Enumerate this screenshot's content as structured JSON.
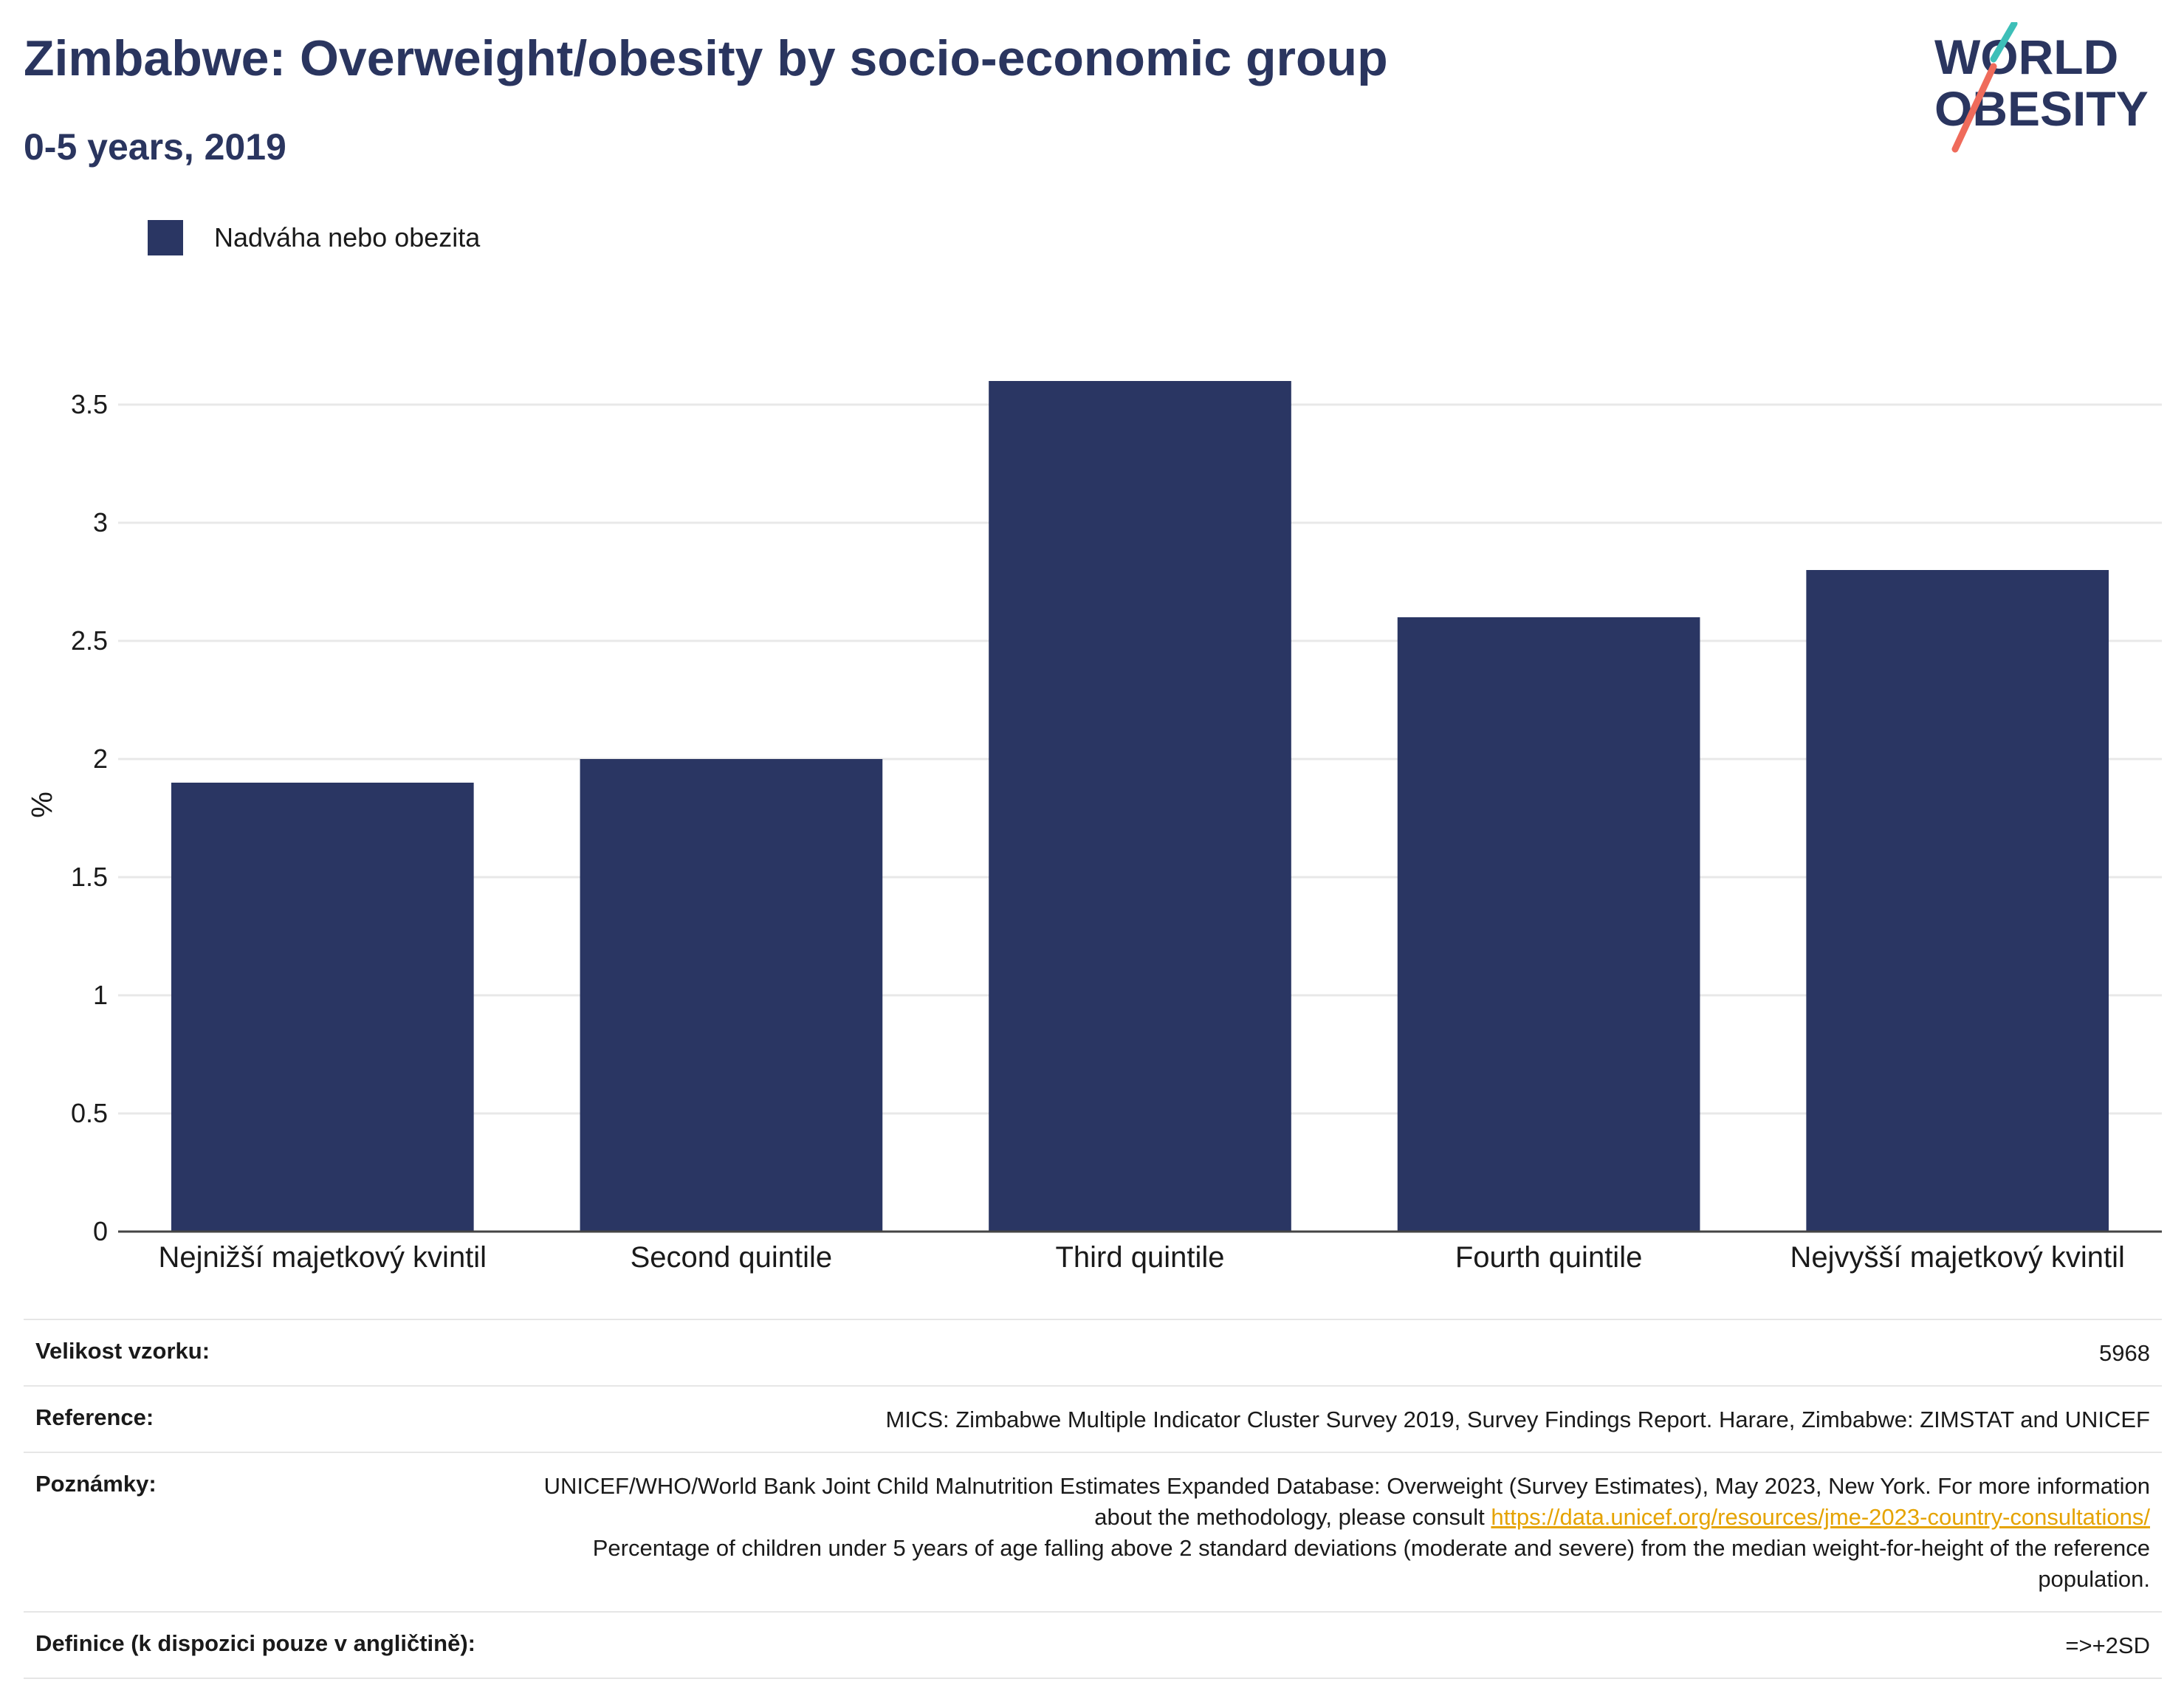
{
  "header": {
    "title": "Zimbabwe: Overweight/obesity by socio-economic group",
    "subtitle": "0-5 years, 2019"
  },
  "logo": {
    "line1": "WORLD",
    "line2": "OBESITY",
    "text_color": "#2a355f",
    "slash_colors": [
      "#3dbfb8",
      "#ef6b5b"
    ]
  },
  "colors": {
    "bar": "#2a3663",
    "title": "#2a355f",
    "link": "#e5a300"
  },
  "chart_data": {
    "type": "bar",
    "ylabel": "%",
    "xlabel": "",
    "ylim": [
      0,
      3.65
    ],
    "yticks": [
      "0",
      "0.5",
      "1",
      "1.5",
      "2",
      "2.5",
      "3",
      "3.5"
    ],
    "grid": true,
    "legend_position": "top-left",
    "categories": [
      "Nejnižší majetkový kvintil",
      "Second quintile",
      "Third quintile",
      "Fourth quintile",
      "Nejvyšší majetkový kvintil"
    ],
    "series": [
      {
        "name": "Nadváha nebo obezita",
        "values": [
          1.9,
          2.0,
          3.6,
          2.6,
          2.8
        ]
      }
    ]
  },
  "table": {
    "sample_size_label": "Velikost vzorku:",
    "sample_size_value": "5968",
    "reference_label": "Reference:",
    "reference_value": "MICS: Zimbabwe Multiple Indicator Cluster Survey 2019, Survey Findings Report. Harare, Zimbabwe: ZIMSTAT and UNICEF",
    "notes_label": "Poznámky:",
    "notes_text1": "UNICEF/WHO/World Bank Joint Child Malnutrition Estimates Expanded Database: Overweight (Survey Estimates), May 2023, New York. For more information about the methodology, please consult ",
    "notes_link": "https://data.unicef.org/resources/jme-2023-country-consultations/",
    "notes_text2": "Percentage of children under 5 years of age falling above 2 standard deviations (moderate and severe) from the median weight-for-height of the reference population.",
    "definition_label": "Definice (k dispozici pouze v angličtině):",
    "definition_value": "=>+2SD"
  }
}
